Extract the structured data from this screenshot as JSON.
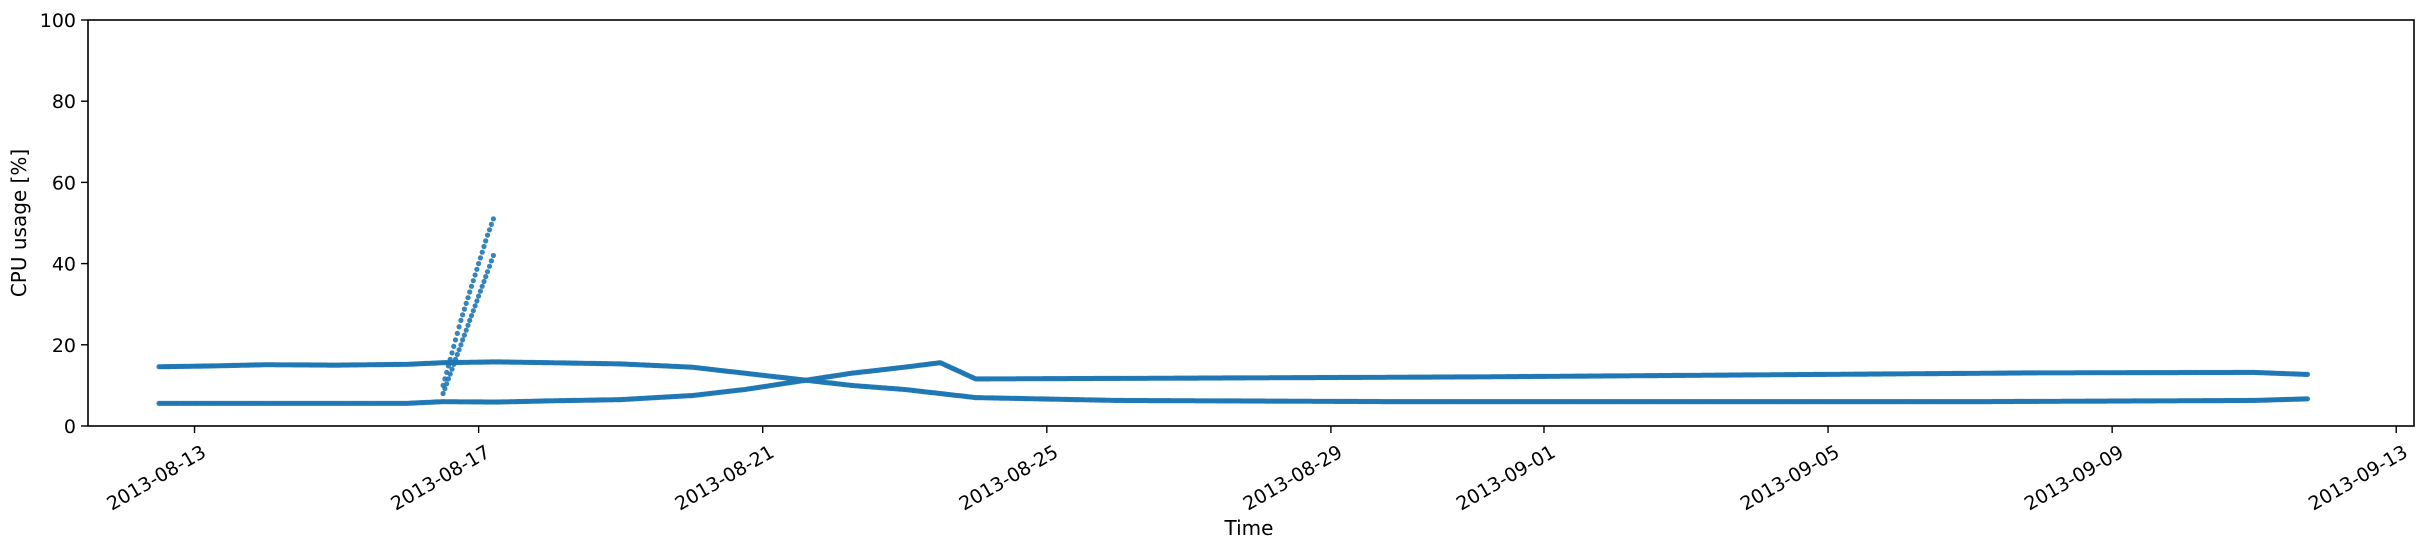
{
  "chart_data": {
    "type": "scatter",
    "title": "",
    "xlabel": "Time",
    "ylabel": "CPU usage [%]",
    "xlim": [
      "2013-08-11T12:00",
      "2013-09-13T06:00"
    ],
    "ylim": [
      0,
      100
    ],
    "yticks": [
      0,
      20,
      40,
      60,
      80,
      100
    ],
    "xticks": [
      "2013-08-13",
      "2013-08-17",
      "2013-08-21",
      "2013-08-25",
      "2013-08-29",
      "2013-09-01",
      "2013-09-05",
      "2013-09-09",
      "2013-09-13"
    ],
    "grid": false,
    "legend": "none",
    "marker_color": "#1f77b4",
    "series": [
      {
        "points": [
          [
            "2013-08-12T12:00",
            14.6
          ],
          [
            "2013-08-13T06:00",
            14.8
          ],
          [
            "2013-08-14T00:00",
            15.1
          ],
          [
            "2013-08-15T00:00",
            15.0
          ],
          [
            "2013-08-16T00:00",
            15.2
          ],
          [
            "2013-08-16T12:00",
            15.6
          ],
          [
            "2013-08-17T06:00",
            15.8
          ],
          [
            "2013-08-18T00:00",
            15.6
          ],
          [
            "2013-08-19T00:00",
            15.3
          ],
          [
            "2013-08-20T00:00",
            14.5
          ],
          [
            "2013-08-20T18:00",
            13.0
          ],
          [
            "2013-08-21T12:00",
            11.5
          ],
          [
            "2013-08-22T06:00",
            10.0
          ],
          [
            "2013-08-23T00:00",
            9.0
          ],
          [
            "2013-08-23T12:00",
            8.0
          ],
          [
            "2013-08-24T00:00",
            7.0
          ],
          [
            "2013-08-26T00:00",
            6.3
          ],
          [
            "2013-08-30T00:00",
            6.0
          ],
          [
            "2013-09-03T00:00",
            6.0
          ],
          [
            "2013-09-07T00:00",
            6.0
          ],
          [
            "2013-09-11T00:00",
            6.3
          ],
          [
            "2013-09-11T18:00",
            6.7
          ]
        ]
      },
      {
        "points": [
          [
            "2013-08-12T12:00",
            5.6
          ],
          [
            "2013-08-14T00:00",
            5.6
          ],
          [
            "2013-08-16T00:00",
            5.6
          ],
          [
            "2013-08-16T12:00",
            6.0
          ],
          [
            "2013-08-17T06:00",
            5.9
          ],
          [
            "2013-08-18T00:00",
            6.2
          ],
          [
            "2013-08-19T00:00",
            6.5
          ],
          [
            "2013-08-20T00:00",
            7.5
          ],
          [
            "2013-08-20T18:00",
            9.0
          ],
          [
            "2013-08-21T12:00",
            11.0
          ],
          [
            "2013-08-22T06:00",
            13.0
          ],
          [
            "2013-08-23T00:00",
            14.5
          ],
          [
            "2013-08-23T12:00",
            15.6
          ],
          [
            "2013-08-24T00:00",
            11.6
          ],
          [
            "2013-08-27T00:00",
            11.8
          ],
          [
            "2013-08-31T00:00",
            12.1
          ],
          [
            "2013-09-04T00:00",
            12.6
          ],
          [
            "2013-09-08T00:00",
            13.1
          ],
          [
            "2013-09-11T00:00",
            13.2
          ],
          [
            "2013-09-11T18:00",
            12.7
          ]
        ]
      },
      {
        "points": [
          [
            "2013-08-16T12:00",
            10.0
          ],
          [
            "2013-08-16T15:00",
            18.0
          ],
          [
            "2013-08-16T18:00",
            26.0
          ],
          [
            "2013-08-16T21:00",
            33.0
          ],
          [
            "2013-08-17T00:00",
            40.0
          ],
          [
            "2013-08-17T03:00",
            47.0
          ],
          [
            "2013-08-17T05:00",
            51.0
          ]
        ]
      },
      {
        "points": [
          [
            "2013-08-16T12:00",
            8.0
          ],
          [
            "2013-08-16T15:00",
            14.0
          ],
          [
            "2013-08-16T18:00",
            20.0
          ],
          [
            "2013-08-16T21:00",
            26.0
          ],
          [
            "2013-08-17T00:00",
            32.0
          ],
          [
            "2013-08-17T03:00",
            38.0
          ],
          [
            "2013-08-17T05:00",
            42.0
          ]
        ]
      }
    ]
  }
}
